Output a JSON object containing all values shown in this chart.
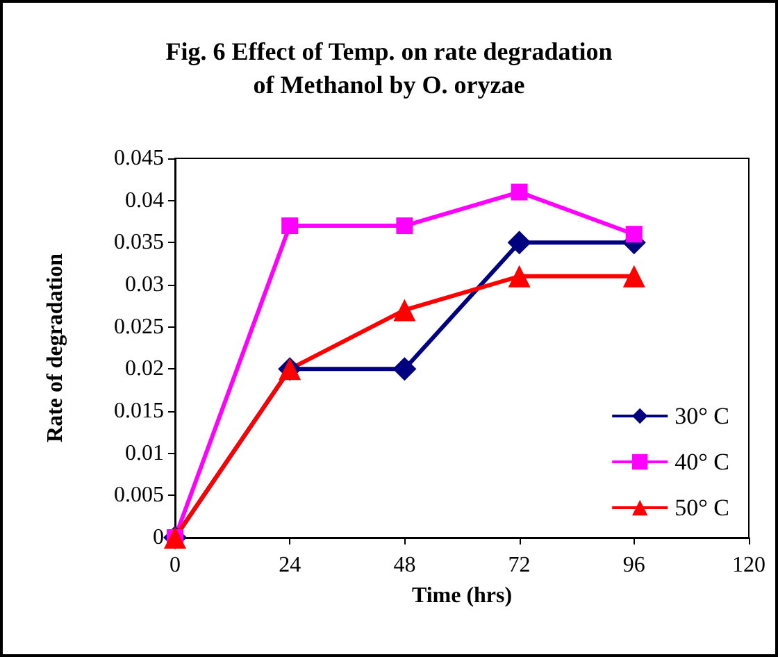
{
  "chart_data": {
    "type": "line",
    "title": "Fig. 6 Effect of Temp. on rate degradation\nof Methanol by O. oryzae",
    "xlabel": "Time (hrs)",
    "ylabel": "Rate of degradation",
    "x": [
      0,
      24,
      48,
      72,
      96
    ],
    "series": [
      {
        "name": "30° C",
        "color": "#000080",
        "marker": "diamond",
        "values": [
          0,
          0.02,
          0.02,
          0.035,
          0.035
        ]
      },
      {
        "name": "40° C",
        "color": "#ff00ff",
        "marker": "square",
        "values": [
          0,
          0.037,
          0.037,
          0.041,
          0.036
        ]
      },
      {
        "name": "50° C",
        "color": "#ff0000",
        "marker": "triangle",
        "values": [
          0,
          0.02,
          0.027,
          0.031,
          0.031
        ]
      }
    ],
    "xlim": [
      0,
      120
    ],
    "xticks": [
      0,
      24,
      48,
      72,
      96,
      120
    ],
    "ylim": [
      0,
      0.045
    ],
    "yticks": [
      0,
      0.005,
      0.01,
      0.015,
      0.02,
      0.025,
      0.03,
      0.035,
      0.04,
      0.045
    ],
    "grid": false,
    "legend": "bottom right",
    "line_style": "solid"
  }
}
